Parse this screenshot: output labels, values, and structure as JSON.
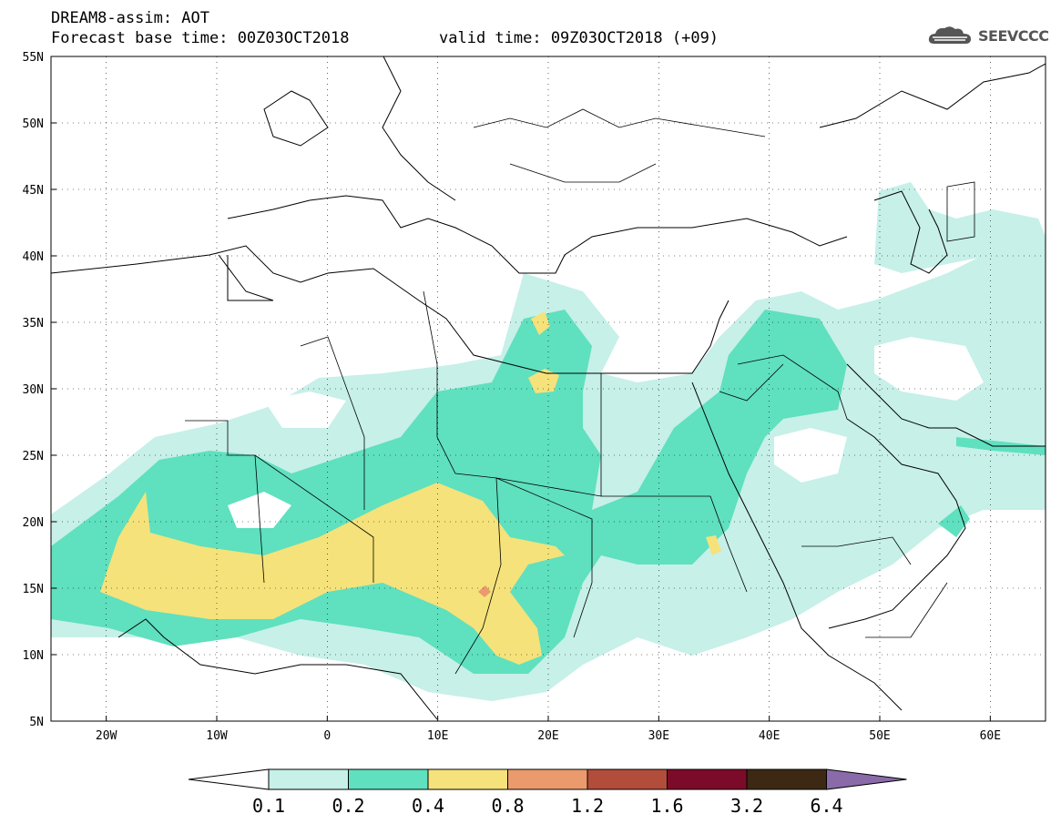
{
  "header": {
    "title": "DREAM8-assim: AOT",
    "base_time": "Forecast base time: 00Z03OCT2018",
    "valid_time": "valid time: 09Z03OCT2018 (+09)"
  },
  "logo": {
    "text": "SEEVCCC",
    "icon": "cloud-icon"
  },
  "map": {
    "lon_range": [
      -25,
      65
    ],
    "lat_range": [
      5,
      55
    ],
    "x_ticks": [
      "20W",
      "10W",
      "0",
      "10E",
      "20E",
      "30E",
      "40E",
      "50E",
      "60E"
    ],
    "y_ticks": [
      "55N",
      "50N",
      "45N",
      "40N",
      "35N",
      "30N",
      "25N",
      "20N",
      "15N",
      "10N",
      "5N"
    ],
    "grid": "dotted"
  },
  "colorbar": {
    "labels": [
      "0.1",
      "0.2",
      "0.4",
      "0.8",
      "1.2",
      "1.6",
      "3.2",
      "6.4"
    ],
    "colors": [
      "#ffffff",
      "#c6f0e8",
      "#5fe0bf",
      "#f5e27a",
      "#ea9a6c",
      "#b24d3b",
      "#7c0b2a",
      "#3d2813",
      "#8a6aa8"
    ]
  },
  "legend_colors": {
    "c01": "#c6f0e8",
    "c02": "#5fe0bf",
    "c04": "#f5e27a",
    "c08": "#ea9a6c"
  }
}
